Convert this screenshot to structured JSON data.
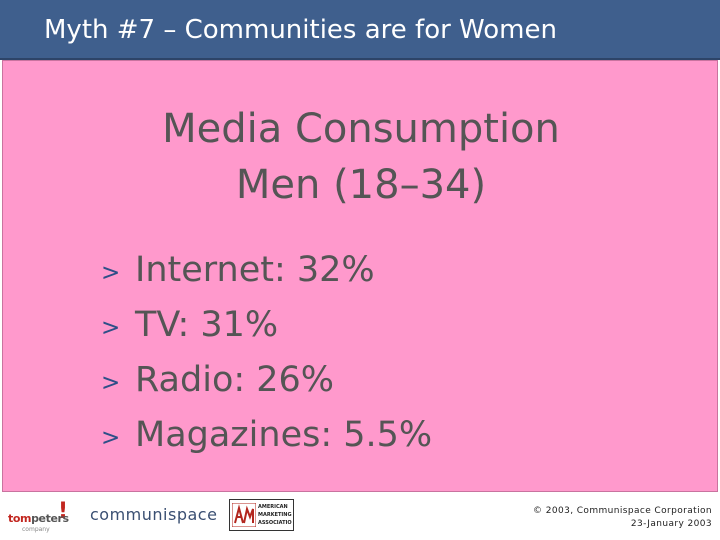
{
  "header": {
    "title": "Myth #7 – Communities are for Women"
  },
  "main": {
    "heading_line1": "Media Consumption",
    "heading_line2": "Men (18–34)",
    "bullet_marker": ">",
    "bullets": [
      {
        "label": "Internet: 32%"
      },
      {
        "label": "TV: 31%"
      },
      {
        "label": "Radio: 26%"
      },
      {
        "label": "Magazines: 5.5%"
      }
    ]
  },
  "footer": {
    "logos": {
      "tompeters": {
        "tom": "tom",
        "peters": "peters",
        "bang": "!",
        "sub": "company"
      },
      "communispace": "communispace",
      "ama": {
        "lines": [
          "AMERICAN",
          "MARKETING",
          "ASSOCIATION"
        ]
      }
    },
    "copyright_line1": "© 2003, Communispace Corporation",
    "copyright_line2": "23-January 2003"
  },
  "colors": {
    "title_bar": "#3f5f8d",
    "content_background": "#ff99cc",
    "bullet_marker": "#2d4f87",
    "body_text": "#555555"
  }
}
